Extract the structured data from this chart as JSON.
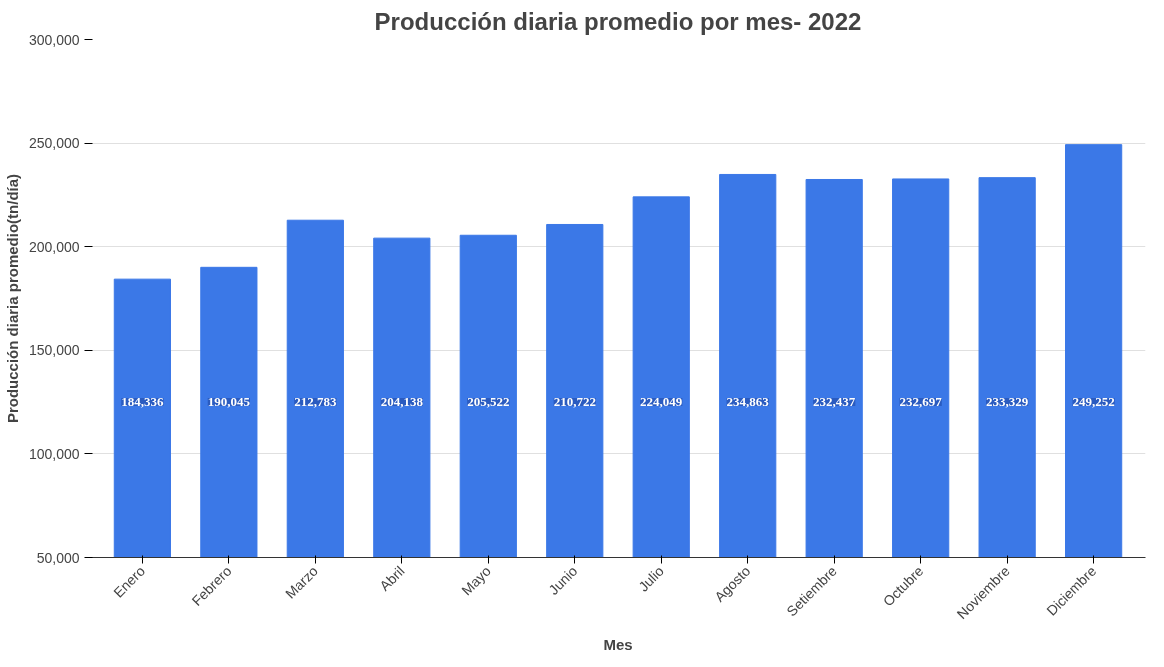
{
  "chart_data": {
    "type": "bar",
    "title": "Producción diaria promedio por mes- 2022",
    "xlabel": "Mes",
    "ylabel": "Producción diaria promedio(tn/día)",
    "categories": [
      "Enero",
      "Febrero",
      "Marzo",
      "Abril",
      "Mayo",
      "Junio",
      "Julio",
      "Agosto",
      "Setiembre",
      "Octubre",
      "Noviembre",
      "Diciembre"
    ],
    "values": [
      184336,
      190045,
      212783,
      204138,
      205522,
      210722,
      224049,
      234863,
      232437,
      232697,
      233329,
      249252
    ],
    "color": "#3b78e7",
    "ylim": [
      50000,
      300000
    ],
    "yticks": [
      {
        "value": 50000,
        "label": "50,000"
      },
      {
        "value": 100000,
        "label": "100,000"
      },
      {
        "value": 150000,
        "label": "150,000"
      },
      {
        "value": 200000,
        "label": "200,000"
      },
      {
        "value": 250000,
        "label": "250,000"
      },
      {
        "value": 300000,
        "label": "300,000"
      }
    ],
    "grid": "y",
    "value_labels": [
      "184,336",
      "190,045",
      "212,783",
      "204,138",
      "205,522",
      "210,722",
      "224,049",
      "234,863",
      "232,437",
      "232,697",
      "233,329",
      "249,252"
    ]
  }
}
